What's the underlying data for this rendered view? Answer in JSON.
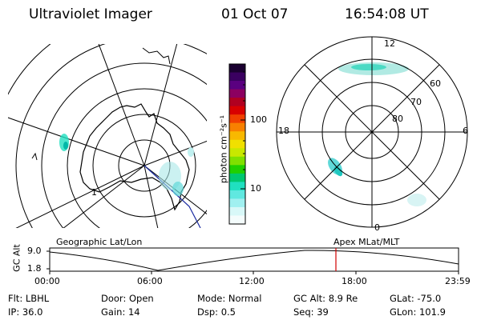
{
  "header": {
    "instrument": "Ultraviolet Imager",
    "date": "01 Oct 07",
    "time": "16:54:08 UT"
  },
  "colorbar": {
    "unit_label": "photon cm⁻²s⁻¹",
    "tick_labels": [
      "100",
      "10"
    ],
    "colors": [
      "#1a0030",
      "#3a0060",
      "#5a0080",
      "#8c0060",
      "#b00020",
      "#d80000",
      "#f04000",
      "#f88000",
      "#f8b800",
      "#f0e000",
      "#c8e800",
      "#80e000",
      "#20d000",
      "#00c870",
      "#20e0c0",
      "#60e8e0",
      "#a0f0f0",
      "#d8f8f8",
      "#f4fcfc"
    ]
  },
  "left_map": {
    "caption": "Geographic Lat/Lon",
    "day_number": "1"
  },
  "right_map": {
    "caption": "Apex MLat/MLT",
    "mlt_labels": {
      "top": "12",
      "bottom": "0",
      "left": "18",
      "right": "6"
    },
    "mlat_labels": [
      "60",
      "70",
      "80"
    ]
  },
  "timeline": {
    "ylabel": "GC Alt",
    "yticks": [
      "9.0",
      "1.8"
    ],
    "xticks": [
      "00:00",
      "06:00",
      "12:00",
      "18:00",
      "23:59"
    ],
    "marker_time": "16:54",
    "marker_color": "#d00000"
  },
  "info": {
    "row1": [
      {
        "label": "Flt:",
        "value": "LBHL"
      },
      {
        "label": "Door:",
        "value": "Open"
      },
      {
        "label": "Mode:",
        "value": "Normal"
      },
      {
        "label": "GC Alt:",
        "value": "8.9 Re"
      },
      {
        "label": "GLat:",
        "value": "-75.0"
      }
    ],
    "row2": [
      {
        "label": "IP:",
        "value": "36.0"
      },
      {
        "label": "Gain:",
        "value": "14"
      },
      {
        "label": "Dsp:",
        "value": "0.5"
      },
      {
        "label": "Seq:",
        "value": "39"
      },
      {
        "label": "GLon:",
        "value": "101.9"
      }
    ]
  }
}
